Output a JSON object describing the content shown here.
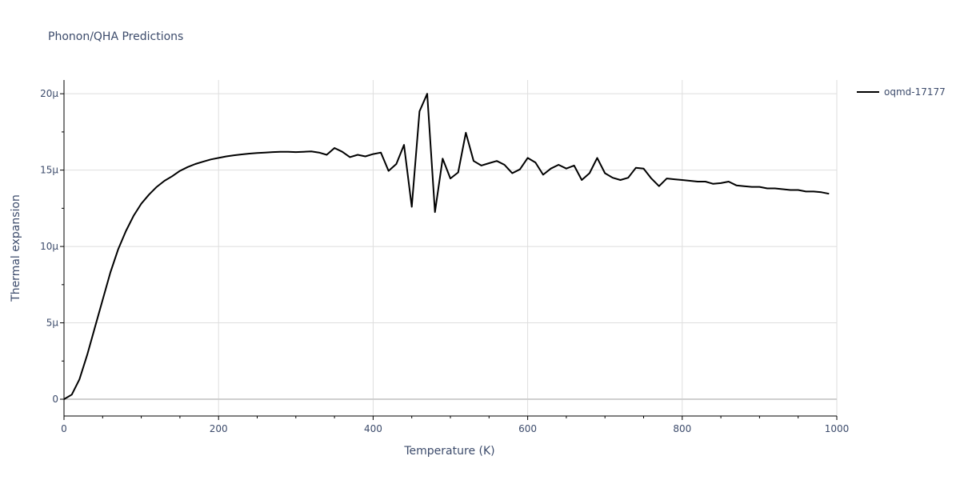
{
  "chart_data": {
    "type": "line",
    "title": "Phonon/QHA Predictions",
    "xlabel": "Temperature (K)",
    "ylabel": "Thermal expansion",
    "xlim": [
      0,
      1000
    ],
    "ylim": [
      -1.1,
      20.9
    ],
    "grid": true,
    "legend": "top-right",
    "x_ticks": [
      0,
      200,
      400,
      600,
      800,
      1000
    ],
    "x_tick_labels": [
      "0",
      "200",
      "400",
      "600",
      "800",
      "1000"
    ],
    "y_ticks": [
      0,
      5,
      10,
      15,
      20
    ],
    "y_tick_labels": [
      "0",
      "5μ",
      "10μ",
      "15μ",
      "20μ"
    ],
    "y_unit_note": "values in units of 1e-6 (μ)",
    "series": [
      {
        "name": "oqmd-17177",
        "color": "#000000",
        "x": [
          0,
          10,
          20,
          30,
          40,
          50,
          60,
          70,
          80,
          90,
          100,
          110,
          120,
          130,
          140,
          150,
          160,
          170,
          180,
          190,
          200,
          210,
          220,
          230,
          240,
          250,
          260,
          270,
          280,
          290,
          300,
          310,
          320,
          330,
          340,
          350,
          360,
          370,
          380,
          390,
          400,
          410,
          420,
          430,
          440,
          450,
          460,
          470,
          480,
          490,
          500,
          510,
          520,
          530,
          540,
          550,
          560,
          570,
          580,
          590,
          600,
          610,
          620,
          630,
          640,
          650,
          660,
          670,
          680,
          690,
          700,
          710,
          720,
          730,
          740,
          750,
          760,
          770,
          780,
          790,
          800,
          810,
          820,
          830,
          840,
          850,
          860,
          870,
          880,
          890,
          900,
          910,
          920,
          930,
          940,
          950,
          960,
          970,
          980,
          990
        ],
        "y": [
          0,
          0.3,
          1.3,
          2.9,
          4.7,
          6.5,
          8.3,
          9.8,
          11.0,
          12.0,
          12.8,
          13.4,
          13.9,
          14.3,
          14.6,
          14.95,
          15.2,
          15.4,
          15.55,
          15.7,
          15.8,
          15.9,
          15.97,
          16.03,
          16.08,
          16.12,
          16.15,
          16.18,
          16.2,
          16.2,
          16.18,
          16.2,
          16.22,
          16.15,
          16.0,
          16.45,
          16.2,
          15.85,
          16.0,
          15.9,
          16.05,
          16.15,
          14.95,
          15.4,
          16.65,
          12.6,
          18.85,
          20.0,
          12.25,
          15.75,
          14.45,
          14.85,
          17.45,
          15.6,
          15.3,
          15.45,
          15.6,
          15.35,
          14.8,
          15.05,
          15.8,
          15.5,
          14.7,
          15.1,
          15.35,
          15.1,
          15.3,
          14.35,
          14.8,
          15.8,
          14.8,
          14.5,
          14.35,
          14.5,
          15.15,
          15.1,
          14.45,
          13.95,
          14.45,
          14.4,
          14.35,
          14.3,
          14.25,
          14.25,
          14.1,
          14.15,
          14.25,
          14.0,
          13.95,
          13.9,
          13.9,
          13.8,
          13.8,
          13.75,
          13.7,
          13.7,
          13.6,
          13.6,
          13.55,
          13.45
        ]
      }
    ]
  }
}
